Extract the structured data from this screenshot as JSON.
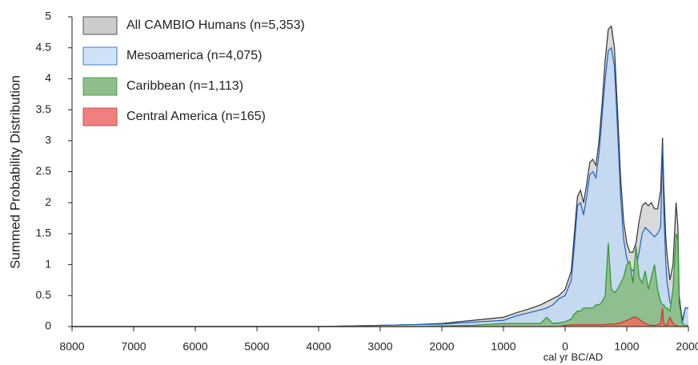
{
  "chart_data": {
    "type": "area",
    "xlabel": "cal yr BC/AD",
    "ylabel": "Summed Probability Distribution",
    "x": [
      -8000,
      -7000,
      -6000,
      -5000,
      -4000,
      -3500,
      -3000,
      -2500,
      -2000,
      -1500,
      -1000,
      -800,
      -600,
      -400,
      -300,
      -200,
      -100,
      0,
      100,
      150,
      200,
      250,
      300,
      350,
      400,
      450,
      500,
      550,
      600,
      650,
      700,
      750,
      800,
      850,
      900,
      950,
      1000,
      1050,
      1100,
      1150,
      1200,
      1250,
      1300,
      1350,
      1400,
      1450,
      1500,
      1550,
      1580,
      1600,
      1630,
      1650,
      1700,
      1750,
      1800,
      1830,
      1850,
      1900,
      1950,
      2000
    ],
    "series": [
      {
        "name": "All CAMBIO Humans (n=5,353)",
        "color": "#d9d9d9",
        "stroke": "#333333",
        "legend_color": "#cccccc",
        "values": [
          0,
          0,
          0,
          0,
          0,
          0.01,
          0.02,
          0.03,
          0.05,
          0.1,
          0.15,
          0.22,
          0.28,
          0.35,
          0.4,
          0.45,
          0.5,
          0.6,
          0.9,
          1.5,
          2.1,
          2.2,
          2.0,
          2.3,
          2.65,
          2.7,
          2.6,
          3.0,
          3.6,
          4.3,
          4.8,
          4.85,
          4.5,
          3.5,
          2.4,
          1.7,
          1.35,
          1.2,
          1.2,
          1.35,
          1.7,
          1.95,
          2.0,
          1.95,
          2.0,
          1.9,
          1.9,
          2.2,
          3.05,
          2.3,
          1.5,
          1.2,
          0.75,
          1.0,
          2.0,
          1.6,
          0.5,
          0.1,
          0.3,
          0.3
        ]
      },
      {
        "name": "Mesoamerica (n=4,075)",
        "color": "#c5d9f1",
        "stroke": "#1f5fbf",
        "legend_color": "#cfe2f7",
        "values": [
          0,
          0,
          0,
          0,
          0,
          0.01,
          0.02,
          0.03,
          0.04,
          0.07,
          0.1,
          0.17,
          0.22,
          0.27,
          0.3,
          0.35,
          0.45,
          0.5,
          0.75,
          1.3,
          1.95,
          2.0,
          1.8,
          2.1,
          2.45,
          2.5,
          2.4,
          2.8,
          3.4,
          4.0,
          4.45,
          4.5,
          4.2,
          3.2,
          2.1,
          1.4,
          1.1,
          0.95,
          0.9,
          0.95,
          1.2,
          1.5,
          1.6,
          1.55,
          1.5,
          1.45,
          1.5,
          1.6,
          2.9,
          1.9,
          1.1,
          0.75,
          0.4,
          0.3,
          0.35,
          0.3,
          0.15,
          0.05,
          0.3,
          0.3
        ]
      },
      {
        "name": "Caribbean (n=1,113)",
        "color": "#8fbf8f",
        "stroke": "#2a9a2a",
        "legend_color": "#8fbd8c",
        "values": [
          0,
          0,
          0,
          0,
          0,
          0,
          0,
          0,
          0.01,
          0.02,
          0.05,
          0.05,
          0.05,
          0.05,
          0.15,
          0.05,
          0.06,
          0.08,
          0.12,
          0.2,
          0.25,
          0.25,
          0.3,
          0.3,
          0.3,
          0.3,
          0.35,
          0.35,
          0.4,
          0.5,
          1.35,
          0.6,
          0.55,
          0.6,
          0.7,
          0.8,
          1.0,
          1.05,
          0.7,
          1.3,
          0.8,
          0.7,
          0.9,
          0.6,
          0.8,
          1.0,
          0.6,
          0.4,
          0.35,
          0.35,
          0.3,
          0.3,
          0.25,
          0.6,
          1.5,
          1.4,
          0.4,
          0.05,
          0.02,
          0.02
        ]
      },
      {
        "name": "Central America (n=165)",
        "color": "#e07a62",
        "stroke": "#c0392b",
        "legend_color": "#f08080",
        "values": [
          0,
          0,
          0,
          0,
          0,
          0,
          0,
          0,
          0,
          0,
          0,
          0,
          0,
          0,
          0,
          0,
          0,
          0.02,
          0.03,
          0.03,
          0.03,
          0.03,
          0.03,
          0.03,
          0.03,
          0.03,
          0.03,
          0.03,
          0.03,
          0.03,
          0.04,
          0.04,
          0.04,
          0.05,
          0.06,
          0.08,
          0.1,
          0.12,
          0.15,
          0.15,
          0.12,
          0.08,
          0.05,
          0.03,
          0.02,
          0.02,
          0.03,
          0.05,
          0.3,
          0.05,
          0.02,
          0.02,
          0.15,
          0.05,
          0.02,
          0.01,
          0,
          0,
          0,
          0
        ]
      }
    ],
    "xlim": [
      -8000,
      2000
    ],
    "xticks": [
      {
        "value": -8000,
        "label": "8000"
      },
      {
        "value": -7000,
        "label": "7000"
      },
      {
        "value": -6000,
        "label": "6000"
      },
      {
        "value": -5000,
        "label": "5000"
      },
      {
        "value": -4000,
        "label": "4000"
      },
      {
        "value": -3000,
        "label": "3000"
      },
      {
        "value": -2000,
        "label": "2000"
      },
      {
        "value": -1000,
        "label": "1000"
      },
      0,
      1000,
      2000
    ],
    "ylim": [
      0,
      5
    ],
    "yticks": [
      0,
      0.5,
      1,
      1.5,
      2,
      2.5,
      3,
      3.5,
      4,
      4.5,
      5
    ],
    "legend": "upper left"
  }
}
